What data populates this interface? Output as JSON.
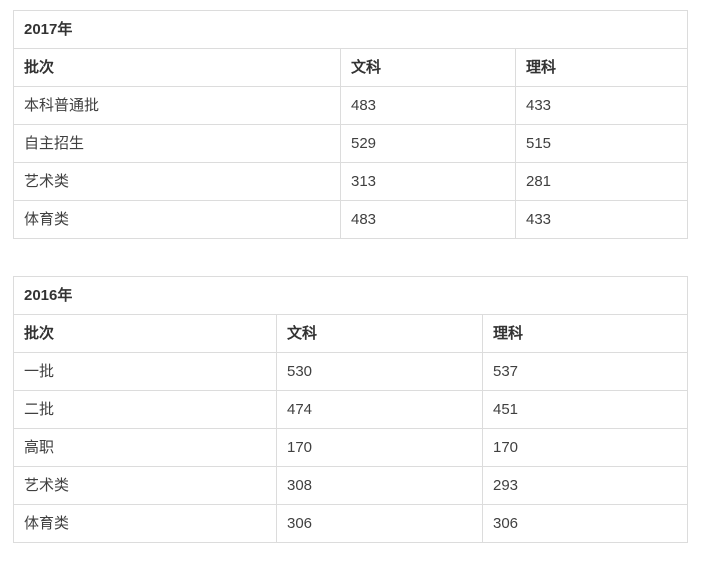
{
  "colors": {
    "background": "#ffffff",
    "border": "#dcdcdc",
    "title_text": "#333333",
    "header_text": "#333333",
    "body_text": "#404040"
  },
  "tables": [
    {
      "title": "2017年",
      "columns": [
        "批次",
        "文科",
        "理科"
      ],
      "rows": [
        [
          "本科普通批",
          "483",
          "433"
        ],
        [
          "自主招生",
          "529",
          "515"
        ],
        [
          "艺术类",
          "313",
          "281"
        ],
        [
          "体育类",
          "483",
          "433"
        ]
      ]
    },
    {
      "title": "2016年",
      "columns": [
        "批次",
        "文科",
        "理科"
      ],
      "rows": [
        [
          "一批",
          "530",
          "537"
        ],
        [
          "二批",
          "474",
          "451"
        ],
        [
          "高职",
          "170",
          "170"
        ],
        [
          "艺术类",
          "308",
          "293"
        ],
        [
          "体育类",
          "306",
          "306"
        ]
      ]
    }
  ]
}
